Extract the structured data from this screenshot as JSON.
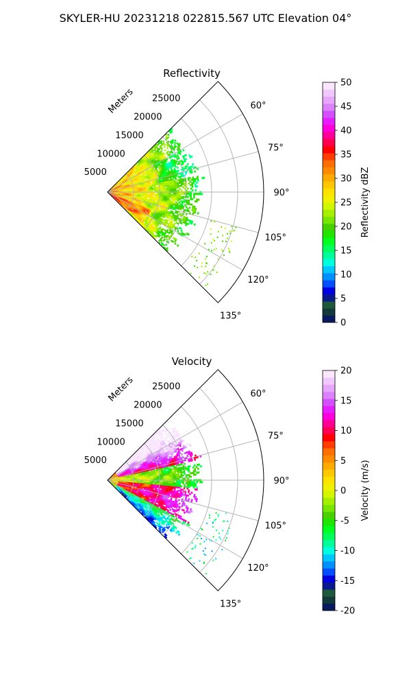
{
  "figure_title": "SKYLER-HU  20231218  022815.567 UTC Elevation 04°",
  "chart_data": [
    {
      "type": "heatmap",
      "subtype": "polar-sector (PPI)",
      "title": "Reflectivity",
      "radial_label": "Meters",
      "radial_ticks": [
        5000,
        10000,
        15000,
        20000,
        25000
      ],
      "r_max": 30000,
      "azimuth_ticks_deg": [
        60,
        75,
        90,
        105,
        120,
        135
      ],
      "azimuth_range_deg": [
        45,
        135
      ],
      "grid": true,
      "colorbar": {
        "label": "Reflectivity dBZ",
        "range": [
          0,
          50
        ],
        "ticks": [
          0,
          5,
          10,
          15,
          20,
          25,
          30,
          35,
          40,
          45,
          50
        ],
        "colors": [
          "#0a1a5e",
          "#123a3a",
          "#1c5a3a",
          "#0a1a8c",
          "#0000e0",
          "#0050ff",
          "#0090ff",
          "#00c8ff",
          "#00ffe0",
          "#00ff9c",
          "#00ff5a",
          "#00ff1e",
          "#1ee600",
          "#46d200",
          "#78e600",
          "#a5f000",
          "#d2f500",
          "#f0f000",
          "#ffe100",
          "#ffc800",
          "#ffaa00",
          "#ff8c00",
          "#ff6e00",
          "#ff3c00",
          "#ff0000",
          "#ff0050",
          "#ff0096",
          "#ff00dc",
          "#e61eff",
          "#d250ff",
          "#dc82ff",
          "#e6a5ff",
          "#f0c8ff",
          "#fae6ff"
        ]
      },
      "field_description": "returns fill sector 45°–135° out to about 17 km; strongest (30–35 dBZ, red/orange) near radar along 115°–130°, weaker 15–25 dBZ green/yellow farther out"
    },
    {
      "type": "heatmap",
      "subtype": "polar-sector (PPI)",
      "title": "Velocity",
      "radial_label": "Meters",
      "radial_ticks": [
        5000,
        10000,
        15000,
        20000,
        25000
      ],
      "r_max": 30000,
      "azimuth_ticks_deg": [
        60,
        75,
        90,
        105,
        120,
        135
      ],
      "azimuth_range_deg": [
        45,
        135
      ],
      "grid": true,
      "colorbar": {
        "label": "Velocity (m/s)",
        "range": [
          -20,
          20
        ],
        "ticks": [
          -20,
          -15,
          -10,
          -5,
          0,
          5,
          10,
          15,
          20
        ],
        "colors": [
          "#0a1a5e",
          "#123a3a",
          "#1c5a3a",
          "#0a1a8c",
          "#0000e0",
          "#0050ff",
          "#0090ff",
          "#00c8ff",
          "#00ffe0",
          "#00ff9c",
          "#00ff5a",
          "#00ff1e",
          "#1ee600",
          "#46d200",
          "#78e600",
          "#a5f000",
          "#d2f500",
          "#f0f000",
          "#ffe100",
          "#ffc800",
          "#ffaa00",
          "#ff8c00",
          "#ff6e00",
          "#ff3c00",
          "#ff0000",
          "#ff0050",
          "#ff0096",
          "#ff00dc",
          "#e61eff",
          "#d250ff",
          "#dc82ff",
          "#e6a5ff",
          "#f0c8ff",
          "#fae6ff"
        ]
      },
      "field_description": "positive (red/magenta, +10 to +15 m/s) returns along 60°–75° and 105°–120°, near zero (yellow) near radar and along 90°, negative (green/cyan, -5 to -12 m/s) toward 130°–135°"
    }
  ]
}
